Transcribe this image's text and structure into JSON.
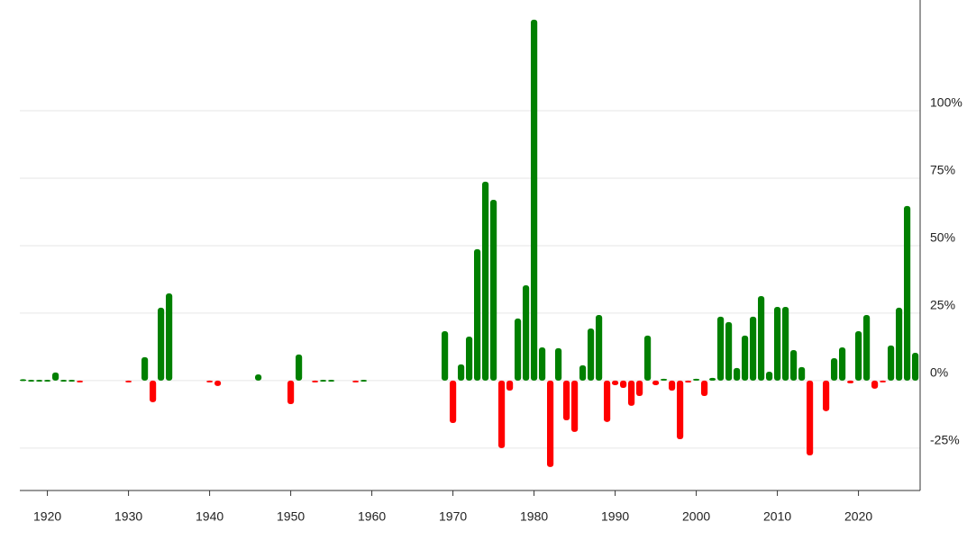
{
  "chart_data": {
    "type": "bar",
    "x": [
      1917,
      1918,
      1919,
      1920,
      1921,
      1922,
      1923,
      1924,
      1930,
      1932,
      1933,
      1934,
      1935,
      1940,
      1941,
      1946,
      1950,
      1951,
      1953,
      1954,
      1955,
      1958,
      1959,
      1969,
      1970,
      1971,
      1972,
      1973,
      1974,
      1975,
      1976,
      1977,
      1978,
      1979,
      1980,
      1981,
      1982,
      1983,
      1984,
      1985,
      1986,
      1987,
      1988,
      1989,
      1990,
      1991,
      1992,
      1993,
      1994,
      1995,
      1996,
      1997,
      1998,
      1999,
      2000,
      2001,
      2002,
      2003,
      2004,
      2005,
      2006,
      2007,
      2008,
      2009,
      2010,
      2011,
      2012,
      2013,
      2014,
      2016,
      2017,
      2018,
      2019,
      2020,
      2021,
      2022,
      2023,
      2024,
      2025,
      2026,
      2027
    ],
    "values": [
      0.5,
      0.3,
      0.3,
      0.3,
      3,
      0.3,
      0.3,
      -0.3,
      -0.3,
      8.7,
      -8,
      27,
      32.3,
      -0.5,
      -2,
      2.3,
      -8.7,
      9.7,
      -0.5,
      0.3,
      0.3,
      -0.5,
      0.3,
      18.3,
      -15.7,
      6,
      16.3,
      48.7,
      73.7,
      67,
      -25,
      -3.7,
      23,
      35.3,
      133.7,
      12.3,
      -32,
      12,
      -14.7,
      -19,
      5.7,
      19.3,
      24.3,
      -15.3,
      -1.7,
      -2.7,
      -9.3,
      -5.7,
      16.7,
      -1.7,
      0.7,
      -3.7,
      -21.7,
      -0.7,
      0.7,
      -5.7,
      1,
      23.7,
      21.7,
      4.7,
      16.7,
      23.7,
      31.3,
      3.3,
      27.3,
      27.3,
      11.3,
      5,
      -27.7,
      -11.3,
      8.3,
      12.3,
      -1,
      18.3,
      24.3,
      -3,
      -0.3,
      13,
      27,
      64.7,
      10.3
    ],
    "positive_color": "#008000",
    "negative_color": "#ff0000",
    "xlim": [
      1916.6,
      2027.6
    ],
    "xticks": [
      1920,
      1930,
      1940,
      1950,
      1960,
      1970,
      1980,
      1990,
      2000,
      2010,
      2020
    ],
    "ylim": [
      -40.7,
      141
    ],
    "yticks": [
      {
        "value": -25,
        "label": "-25%"
      },
      {
        "value": 0,
        "label": "0%"
      },
      {
        "value": 25,
        "label": "25%"
      },
      {
        "value": 50,
        "label": "50%"
      },
      {
        "value": 75,
        "label": "75%"
      },
      {
        "value": 100,
        "label": "100%"
      }
    ],
    "grid": true
  }
}
